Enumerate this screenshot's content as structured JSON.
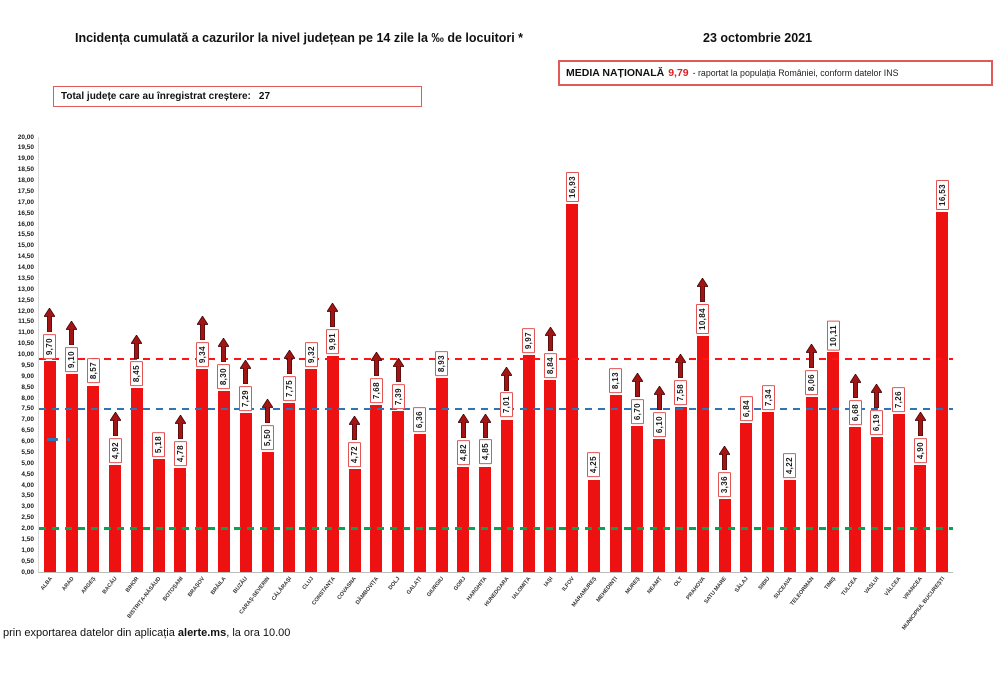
{
  "header": {
    "title": "Incidența cumulată a cazurilor la nivel județean pe 14 zile la ‰ de locuitori *",
    "date": "23 octombrie 2021",
    "national_average": {
      "label": "MEDIA NAȚIONALĂ",
      "value": "9,79",
      "note": "-  raportat la populația României, conform datelor INS"
    },
    "increase_total": {
      "label": "Total județe care au înregistrat creștere:",
      "value": "27"
    }
  },
  "footer": {
    "prefix": "prin exportarea datelor din aplicația ",
    "app_name": "alerte.ms",
    "suffix": ", la ora 10.00"
  },
  "chart_data": {
    "type": "bar",
    "title": "Incidența cumulată a cazurilor la nivel județean pe 14 zile la ‰ de locuitori *",
    "xlabel": "",
    "ylabel": "",
    "ylim": [
      0,
      20
    ],
    "ytick_step": 0.5,
    "ytick_format": "decimal-comma",
    "grid": false,
    "legend_position": "none",
    "bar_color": "#ee1111",
    "value_label_border_color": "#e25555",
    "arrow_color": "#a31515",
    "categories": [
      "ALBA",
      "ARAD",
      "ARGEȘ",
      "BACĂU",
      "BIHOR",
      "BISTRIȚA-NĂSĂUD",
      "BOTOȘANI",
      "BRAȘOV",
      "BRĂILA",
      "BUZĂU",
      "CARAȘ-SEVERIN",
      "CĂLĂRAȘI",
      "CLUJ",
      "CONSTANȚA",
      "COVASNA",
      "DÂMBOVIȚA",
      "DOLJ",
      "GALAȚI",
      "GIURGIU",
      "GORJ",
      "HARGHITA",
      "HUNEDOARA",
      "IALOMIȚA",
      "IAȘI",
      "ILFOV",
      "MARAMUREȘ",
      "MEHEDINȚI",
      "MUREȘ",
      "NEAMȚ",
      "OLT",
      "PRAHOVA",
      "SATU MARE",
      "SĂLAJ",
      "SIBIU",
      "SUCEAVA",
      "TELEORMAN",
      "TIMIȘ",
      "TULCEA",
      "VASLUI",
      "VÂLCEA",
      "VRANCEA",
      "MUNICIPIUL BUCUREȘTI"
    ],
    "values": [
      9.7,
      9.1,
      8.57,
      4.92,
      8.45,
      5.18,
      4.78,
      9.34,
      8.3,
      7.29,
      5.5,
      7.75,
      9.32,
      9.91,
      4.72,
      7.68,
      7.39,
      6.36,
      8.93,
      4.82,
      4.85,
      7.01,
      9.97,
      8.84,
      16.93,
      4.25,
      8.13,
      6.7,
      6.1,
      7.58,
      10.84,
      3.36,
      6.84,
      7.34,
      4.22,
      8.06,
      10.11,
      6.68,
      6.19,
      7.26,
      4.9,
      16.53
    ],
    "increase_arrows": [
      true,
      true,
      false,
      true,
      true,
      false,
      true,
      true,
      true,
      true,
      true,
      true,
      false,
      true,
      true,
      true,
      true,
      false,
      false,
      true,
      true,
      true,
      false,
      true,
      false,
      false,
      false,
      true,
      true,
      true,
      true,
      true,
      false,
      false,
      false,
      true,
      false,
      true,
      true,
      false,
      true,
      false
    ],
    "reference_lines": [
      {
        "name": "national-average",
        "value": 9.79,
        "color": "#ff1414"
      },
      {
        "name": "threshold-7-50",
        "value": 7.5,
        "color": "#2e75b6"
      },
      {
        "name": "threshold-2-00",
        "value": 2.0,
        "color": "#00a651"
      }
    ]
  }
}
